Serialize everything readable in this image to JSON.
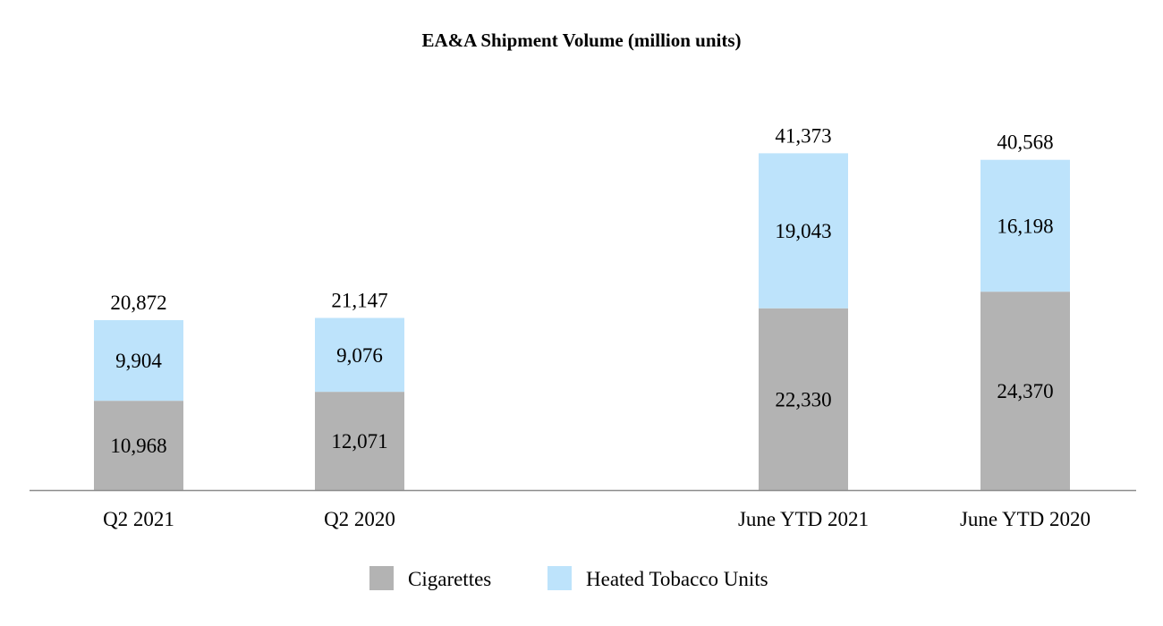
{
  "chart_data": {
    "type": "bar",
    "stacked": true,
    "title": "EA&A Shipment Volume (million units)",
    "xlabel": "",
    "ylabel": "",
    "categories": [
      "Q2 2021",
      "Q2 2020",
      "June YTD 2021",
      "June YTD 2020"
    ],
    "series": [
      {
        "name": "Cigarettes",
        "color": "#b3b3b3",
        "values": [
          10968,
          12071,
          22330,
          24370
        ],
        "labels": [
          "10,968",
          "12,071",
          "22,330",
          "24,370"
        ]
      },
      {
        "name": "Heated Tobacco Units",
        "color": "#bde3fb",
        "values": [
          9904,
          9076,
          19043,
          16198
        ],
        "labels": [
          "9,904",
          "9,076",
          "19,043",
          "16,198"
        ]
      }
    ],
    "totals": [
      20872,
      21147,
      41373,
      40568
    ],
    "total_labels": [
      "20,872",
      "21,147",
      "41,373",
      "40,568"
    ],
    "ylim": [
      0,
      45000
    ],
    "grid": false,
    "legend": "bottom-center"
  }
}
